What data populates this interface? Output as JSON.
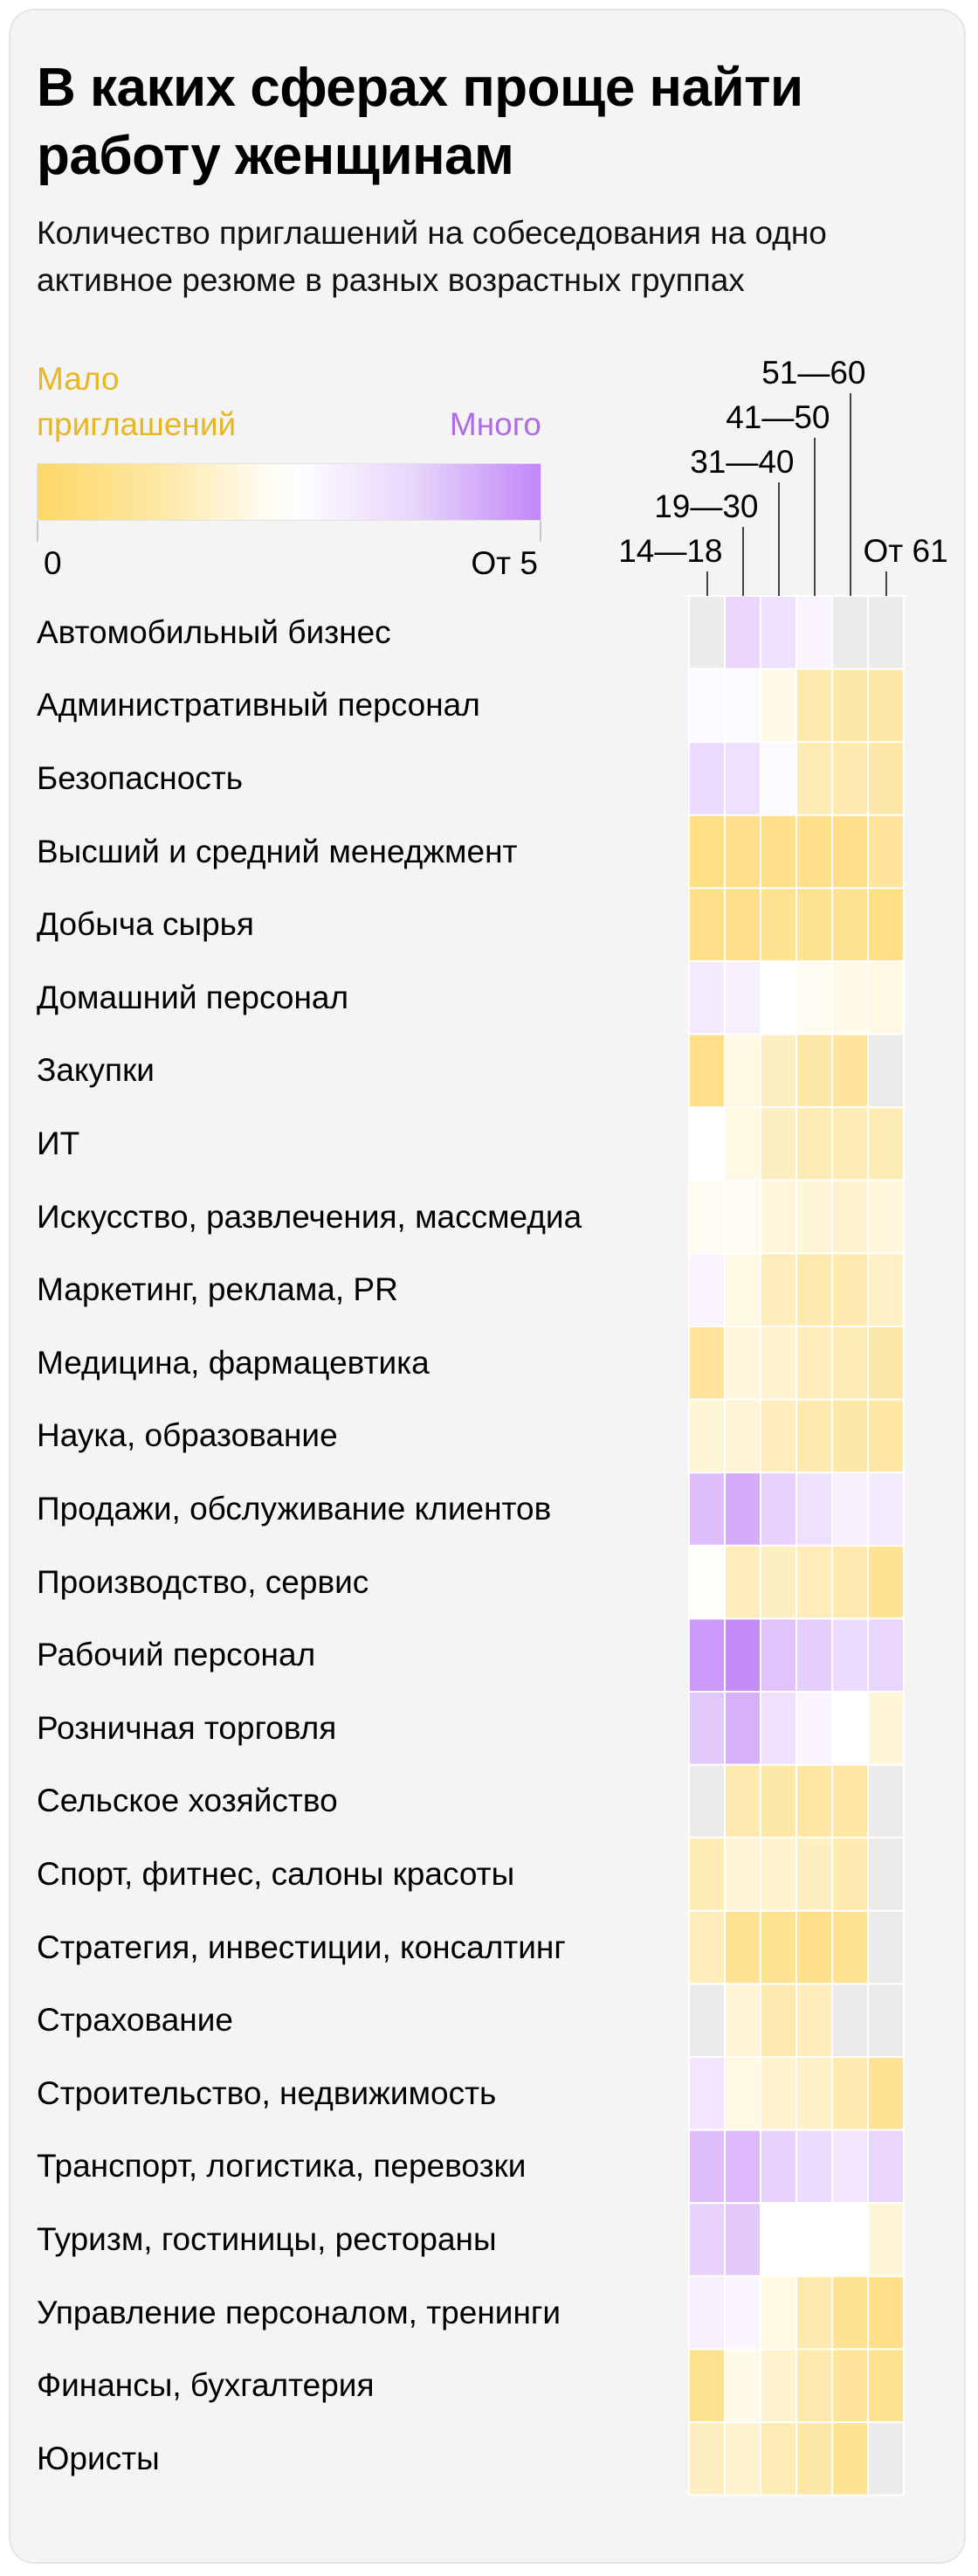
{
  "title": "В каких сферах проще найти работу женщинам",
  "subtitle": "Количество приглашений на собеседования на одно активное резюме в разных возрастных группах",
  "legend": {
    "low_label": "Мало приглашений",
    "high_label": "Много",
    "min_label": "0",
    "max_label": "От 5",
    "colors": {
      "low": "#fdd766",
      "mid": "#ffffff",
      "high": "#c287f8",
      "no_data": "#ebebeb"
    }
  },
  "chart_data": {
    "type": "heatmap",
    "x": [
      "14—18",
      "19—30",
      "31—40",
      "41—50",
      "51—60",
      "От 61"
    ],
    "y": [
      "Автомобильный бизнес",
      "Административный персонал",
      "Безопасность",
      "Высший и средний менеджмент",
      "Добыча сырья",
      "Домашний персонал",
      "Закупки",
      "ИТ",
      "Искусство, развлечения, массмедиа",
      "Маркетинг, реклама, PR",
      "Медицина, фармацевтика",
      "Наука, образование",
      "Продажи, обслуживание клиентов",
      "Производство, сервис",
      "Рабочий персонал",
      "Розничная торговля",
      "Сельское хозяйство",
      "Спорт, фитнес, салоны красоты",
      "Стратегия, инвестиции, консалтинг",
      "Страхование",
      "Строительство, недвижимость",
      "Транспорт, логистика, перевозки",
      "Туризм, гостиницы, рестораны",
      "Управление персоналом, тренинги",
      "Финансы, бухгалтерия",
      "Юристы"
    ],
    "values": [
      [
        null,
        3.3,
        3.1,
        2.7,
        null,
        null
      ],
      [
        2.6,
        2.6,
        2.2,
        1.3,
        1.2,
        1.2
      ],
      [
        3.2,
        3.1,
        2.6,
        1.4,
        1.3,
        1.2
      ],
      [
        0.6,
        0.7,
        0.7,
        0.7,
        0.7,
        1.0
      ],
      [
        0.7,
        0.7,
        0.8,
        0.8,
        0.8,
        0.6
      ],
      [
        2.9,
        2.8,
        2.5,
        2.3,
        2.2,
        2.1
      ],
      [
        0.7,
        2.1,
        1.6,
        1.2,
        1.0,
        null
      ],
      [
        2.5,
        2.1,
        1.6,
        1.4,
        1.4,
        1.4
      ],
      [
        2.3,
        2.3,
        2.0,
        1.9,
        1.8,
        2.0
      ],
      [
        2.7,
        2.1,
        1.5,
        1.3,
        1.3,
        1.7
      ],
      [
        1.0,
        2.0,
        1.8,
        1.5,
        1.4,
        1.2
      ],
      [
        1.9,
        1.9,
        1.5,
        1.3,
        1.2,
        1.1
      ],
      [
        3.8,
        4.2,
        3.4,
        3.1,
        2.8,
        2.9
      ],
      [
        2.4,
        1.5,
        1.6,
        1.5,
        1.3,
        0.9
      ],
      [
        4.6,
        4.9,
        3.7,
        3.5,
        3.2,
        3.3
      ],
      [
        3.6,
        4.1,
        3.1,
        2.7,
        2.5,
        1.9
      ],
      [
        null,
        1.3,
        1.2,
        1.1,
        1.1,
        null
      ],
      [
        1.4,
        1.9,
        1.8,
        1.6,
        1.3,
        null
      ],
      [
        1.5,
        0.9,
        0.8,
        0.7,
        0.8,
        null
      ],
      [
        null,
        1.9,
        1.3,
        1.5,
        null,
        null
      ],
      [
        3.0,
        2.1,
        1.8,
        1.7,
        1.3,
        0.9
      ],
      [
        3.8,
        3.9,
        3.4,
        3.2,
        3.0,
        3.3
      ],
      [
        3.4,
        3.6,
        2.5,
        2.5,
        2.5,
        1.9
      ],
      [
        2.8,
        2.7,
        2.1,
        1.3,
        0.9,
        0.7
      ],
      [
        0.8,
        2.2,
        1.8,
        1.3,
        1.0,
        0.8
      ],
      [
        1.6,
        1.8,
        1.4,
        1.2,
        0.9,
        null
      ]
    ],
    "scale_min": 0,
    "scale_max": 5,
    "scale_min_label": "0",
    "scale_max_label": "От 5",
    "title": "В каких сферах проще найти работу женщинам",
    "subtitle": "Количество приглашений на собеседования на одно активное резюме в разных возрастных группах"
  }
}
